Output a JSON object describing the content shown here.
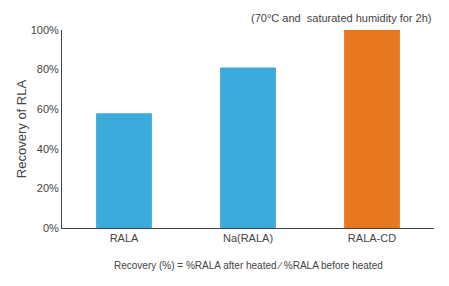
{
  "chart_data": {
    "type": "bar",
    "categories": [
      "RALA",
      "Na(RALA)",
      "RALA-CD"
    ],
    "values": [
      58,
      81,
      100
    ],
    "colors": [
      "#3aabdb",
      "#3aabdb",
      "#e87820"
    ],
    "ylabel": "Recovery of RLA",
    "ylim": [
      0,
      100
    ],
    "yticks": [
      {
        "value": 0,
        "label": "0%"
      },
      {
        "value": 20,
        "label": "20%"
      },
      {
        "value": 40,
        "label": "40%"
      },
      {
        "value": 60,
        "label": "60%"
      },
      {
        "value": 80,
        "label": "80%"
      },
      {
        "value": 100,
        "label": "100%"
      }
    ],
    "annotations": [
      "(70°C and  saturated humidity for 2h)",
      "Recovery (%) = %RALA after heated ∕ %RALA before heated"
    ],
    "grid": false
  }
}
